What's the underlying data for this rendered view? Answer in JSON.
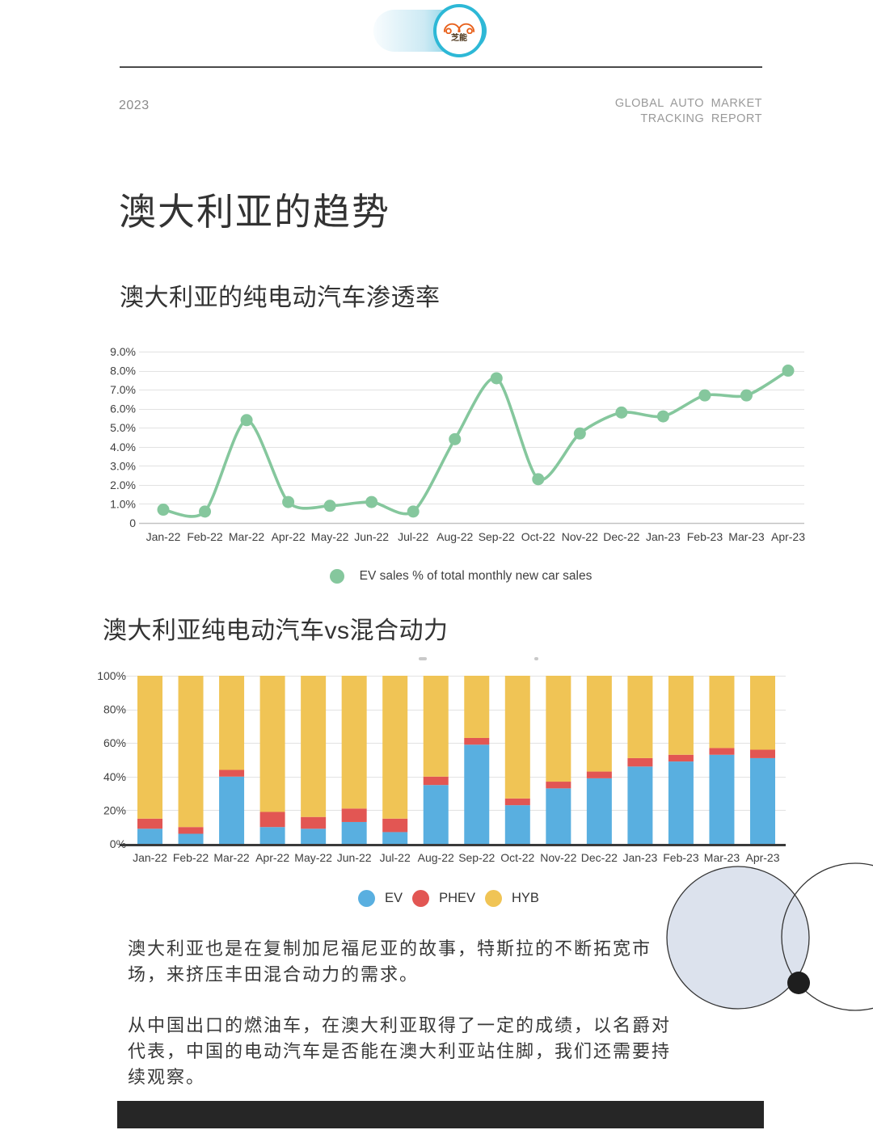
{
  "header": {
    "year": "2023",
    "report_line1": "GLOBAL AUTO MARKET",
    "report_line2": "TRACKING REPORT",
    "logo_text": "芝能"
  },
  "page_title": "澳大利亚的趋势",
  "section1": {
    "title": "澳大利亚的纯电动汽车渗透率"
  },
  "section2": {
    "title": "澳大利亚纯电动汽车vs混合动力"
  },
  "paragraphs": {
    "p1": "澳大利亚也是在复制加尼福尼亚的故事，特斯拉的不断拓宽市场，来挤压丰田混合动力的需求。",
    "p2": "从中国出口的燃油车，在澳大利亚取得了一定的成绩，以名爵对代表，中国的电动汽车是否能在澳大利亚站住脚，我们还需要持续观察。"
  },
  "chart_data": [
    {
      "type": "line",
      "title": "澳大利亚的纯电动汽车渗透率",
      "x": [
        "Jan-22",
        "Feb-22",
        "Mar-22",
        "Apr-22",
        "May-22",
        "Jun-22",
        "Jul-22",
        "Aug-22",
        "Sep-22",
        "Oct-22",
        "Nov-22",
        "Dec-22",
        "Jan-23",
        "Feb-23",
        "Mar-23",
        "Apr-23"
      ],
      "series": [
        {
          "name": "EV sales % of total monthly new car sales",
          "values": [
            0.7,
            0.6,
            5.4,
            1.1,
            0.9,
            1.1,
            0.6,
            4.4,
            7.6,
            2.3,
            4.7,
            5.8,
            5.6,
            6.7,
            6.7,
            8.0
          ]
        }
      ],
      "ylim": [
        0,
        9
      ],
      "yticks": [
        [
          9,
          "9.0%"
        ],
        [
          8,
          "8.0%"
        ],
        [
          7,
          "7.0%"
        ],
        [
          6,
          "6.0%"
        ],
        [
          5,
          "5.0%"
        ],
        [
          4,
          "4.0%"
        ],
        [
          3,
          "3.0%"
        ],
        [
          2,
          "2.0%"
        ],
        [
          1,
          "1.0%"
        ],
        [
          0,
          "0"
        ]
      ],
      "color": "#85c79d",
      "grid": true,
      "legend_position": "bottom"
    },
    {
      "type": "bar",
      "stacked": true,
      "title": "澳大利亚纯电动汽车vs混合动力",
      "categories": [
        "Jan-22",
        "Feb-22",
        "Mar-22",
        "Apr-22",
        "May-22",
        "Jun-22",
        "Jul-22",
        "Aug-22",
        "Sep-22",
        "Oct-22",
        "Nov-22",
        "Dec-22",
        "Jan-23",
        "Feb-23",
        "Mar-23",
        "Apr-23"
      ],
      "series": [
        {
          "name": "EV",
          "color": "#59afe0",
          "values": [
            9,
            6,
            40,
            10,
            9,
            13,
            7,
            35,
            59,
            23,
            33,
            39,
            46,
            49,
            53,
            51
          ]
        },
        {
          "name": "PHEV",
          "color": "#e25653",
          "values": [
            6,
            4,
            4,
            9,
            7,
            8,
            8,
            5,
            4,
            4,
            4,
            4,
            5,
            4,
            4,
            5
          ]
        },
        {
          "name": "HYB",
          "color": "#f0c455",
          "values": [
            85,
            90,
            56,
            81,
            84,
            79,
            85,
            60,
            37,
            73,
            63,
            57,
            49,
            47,
            43,
            44
          ]
        }
      ],
      "ylim": [
        0,
        100
      ],
      "yticks": [
        [
          100,
          "100%"
        ],
        [
          80,
          "80%"
        ],
        [
          60,
          "60%"
        ],
        [
          40,
          "40%"
        ],
        [
          20,
          "20%"
        ],
        [
          0,
          "0%"
        ]
      ],
      "grid": true,
      "legend_position": "bottom"
    }
  ]
}
